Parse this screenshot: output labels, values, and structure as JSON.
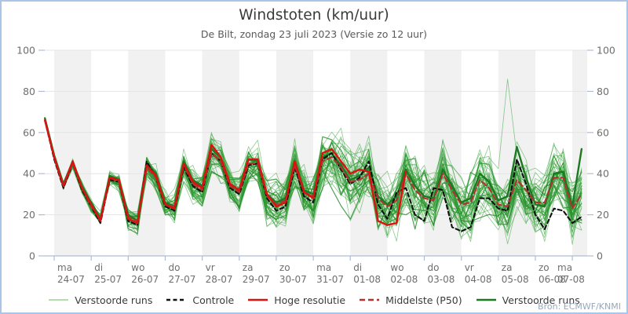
{
  "header": {
    "title": "Windstoten (km/uur)",
    "subtitle": "De Bilt, zondag 23 juli 2023 (Versie zo 12 uur)"
  },
  "attribution": "Bron: ECMWF/KNMI",
  "legend": [
    {
      "label": "Verstoorde runs",
      "color": "#b4dcac",
      "width": 2,
      "dash": ""
    },
    {
      "label": "Controle",
      "color": "#111111",
      "width": 2.4,
      "dash": "5 3.5"
    },
    {
      "label": "Hoge resolutie",
      "color": "#dd1111",
      "width": 2.6,
      "dash": ""
    },
    {
      "label": "Middelste (P50)",
      "color": "#b03232",
      "width": 2.4,
      "dash": "7 4"
    },
    {
      "label": "Verstoorde runs",
      "color": "#1b7a21",
      "width": 2.6,
      "dash": ""
    }
  ],
  "colors": {
    "band": "#f1f1f1",
    "grid": "#e4e4e4",
    "axis": "#aebdd6",
    "tick_text": "#6e6e6e",
    "member_green": "#2f9e33",
    "member_green_dark": "#238b27",
    "highlight_green": "#1b7a21",
    "hres_red": "#dd1111",
    "controle_black": "#111111",
    "p50_red": "#b03232"
  },
  "chart_data": {
    "type": "line",
    "title": "Windstoten (km/uur)",
    "subtitle": "De Bilt, zondag 23 juli 2023 (Versie zo 12 uur)",
    "ylabel": "km/uur",
    "ylim": [
      0,
      100
    ],
    "yticks": [
      0,
      20,
      40,
      60,
      80,
      100
    ],
    "time_step_hours": 6,
    "first_point": "zo 23-07 18:00",
    "x_days": [
      {
        "day": "ma",
        "date": "24-07",
        "shaded": true
      },
      {
        "day": "di",
        "date": "25-07",
        "shaded": false
      },
      {
        "day": "wo",
        "date": "26-07",
        "shaded": true
      },
      {
        "day": "do",
        "date": "27-07",
        "shaded": false
      },
      {
        "day": "vr",
        "date": "28-07",
        "shaded": true
      },
      {
        "day": "za",
        "date": "29-07",
        "shaded": false
      },
      {
        "day": "zo",
        "date": "30-07",
        "shaded": true
      },
      {
        "day": "ma",
        "date": "31-07",
        "shaded": false
      },
      {
        "day": "di",
        "date": "01-08",
        "shaded": true
      },
      {
        "day": "wo",
        "date": "02-08",
        "shaded": false
      },
      {
        "day": "do",
        "date": "03-08",
        "shaded": true
      },
      {
        "day": "vr",
        "date": "04-08",
        "shaded": false
      },
      {
        "day": "za",
        "date": "05-08",
        "shaded": true
      },
      {
        "day": "zo",
        "date": "06-08",
        "shaded": false
      },
      {
        "day": "ma",
        "date": "07-08",
        "shaded": true
      }
    ],
    "series": [
      {
        "name": "Hoge resolutie",
        "style": "solid-red",
        "values": [
          66,
          48,
          34,
          46,
          33,
          25,
          17,
          38,
          37,
          18,
          16,
          44,
          39,
          25,
          23,
          45,
          36,
          33,
          54,
          48,
          35,
          32,
          47,
          47,
          30,
          24,
          26,
          46,
          31,
          28,
          50,
          52,
          46,
          40,
          42,
          41,
          17,
          15,
          16,
          41
        ]
      },
      {
        "name": "Controle",
        "style": "dashed-black",
        "values": [
          66,
          47,
          33,
          45,
          32,
          24,
          16,
          37,
          36,
          17,
          15,
          46,
          38,
          24,
          22,
          43,
          34,
          31,
          50,
          46,
          33,
          30,
          44,
          45,
          28,
          22,
          24,
          43,
          29,
          26,
          47,
          50,
          42,
          35,
          38,
          46,
          25,
          18,
          31,
          33,
          20,
          17,
          33,
          32,
          14,
          12,
          14,
          28,
          28,
          23,
          22,
          47,
          35,
          20,
          13,
          23,
          22,
          16,
          19
        ]
      },
      {
        "name": "Middelste (P50)",
        "style": "dashed-darkred",
        "values": [
          66,
          48,
          34,
          45,
          33,
          24,
          18,
          38,
          36,
          19,
          17,
          43,
          38,
          25,
          24,
          44,
          35,
          32,
          50,
          46,
          34,
          31,
          45,
          45,
          29,
          25,
          27,
          44,
          31,
          29,
          46,
          48,
          43,
          36,
          37,
          40,
          28,
          24,
          27,
          40,
          32,
          28,
          27,
          40,
          32,
          25,
          26,
          37,
          33,
          25,
          24,
          37,
          32,
          26,
          26,
          38,
          38,
          23,
          30
        ]
      },
      {
        "name": "Verstoorde run (uitgelicht)",
        "style": "thick-green",
        "values": [
          67,
          49,
          35,
          46,
          34,
          26,
          18,
          39,
          37,
          20,
          17,
          45,
          40,
          26,
          24,
          46,
          37,
          34,
          52,
          48,
          35,
          32,
          47,
          46,
          30,
          26,
          28,
          46,
          32,
          30,
          48,
          50,
          44,
          37,
          39,
          43,
          29,
          25,
          29,
          42,
          34,
          29,
          28,
          42,
          34,
          26,
          28,
          40,
          36,
          27,
          29,
          53,
          38,
          25,
          24,
          40,
          41,
          24,
          52
        ]
      }
    ],
    "ensemble": {
      "name": "Verstoorde runs",
      "count": 48,
      "seed": 20230723,
      "spread_start": 0.8,
      "spread_growth": 0.45,
      "spread_max": 16,
      "spike": {
        "member": 7,
        "index": 50,
        "amount": 50
      }
    }
  }
}
